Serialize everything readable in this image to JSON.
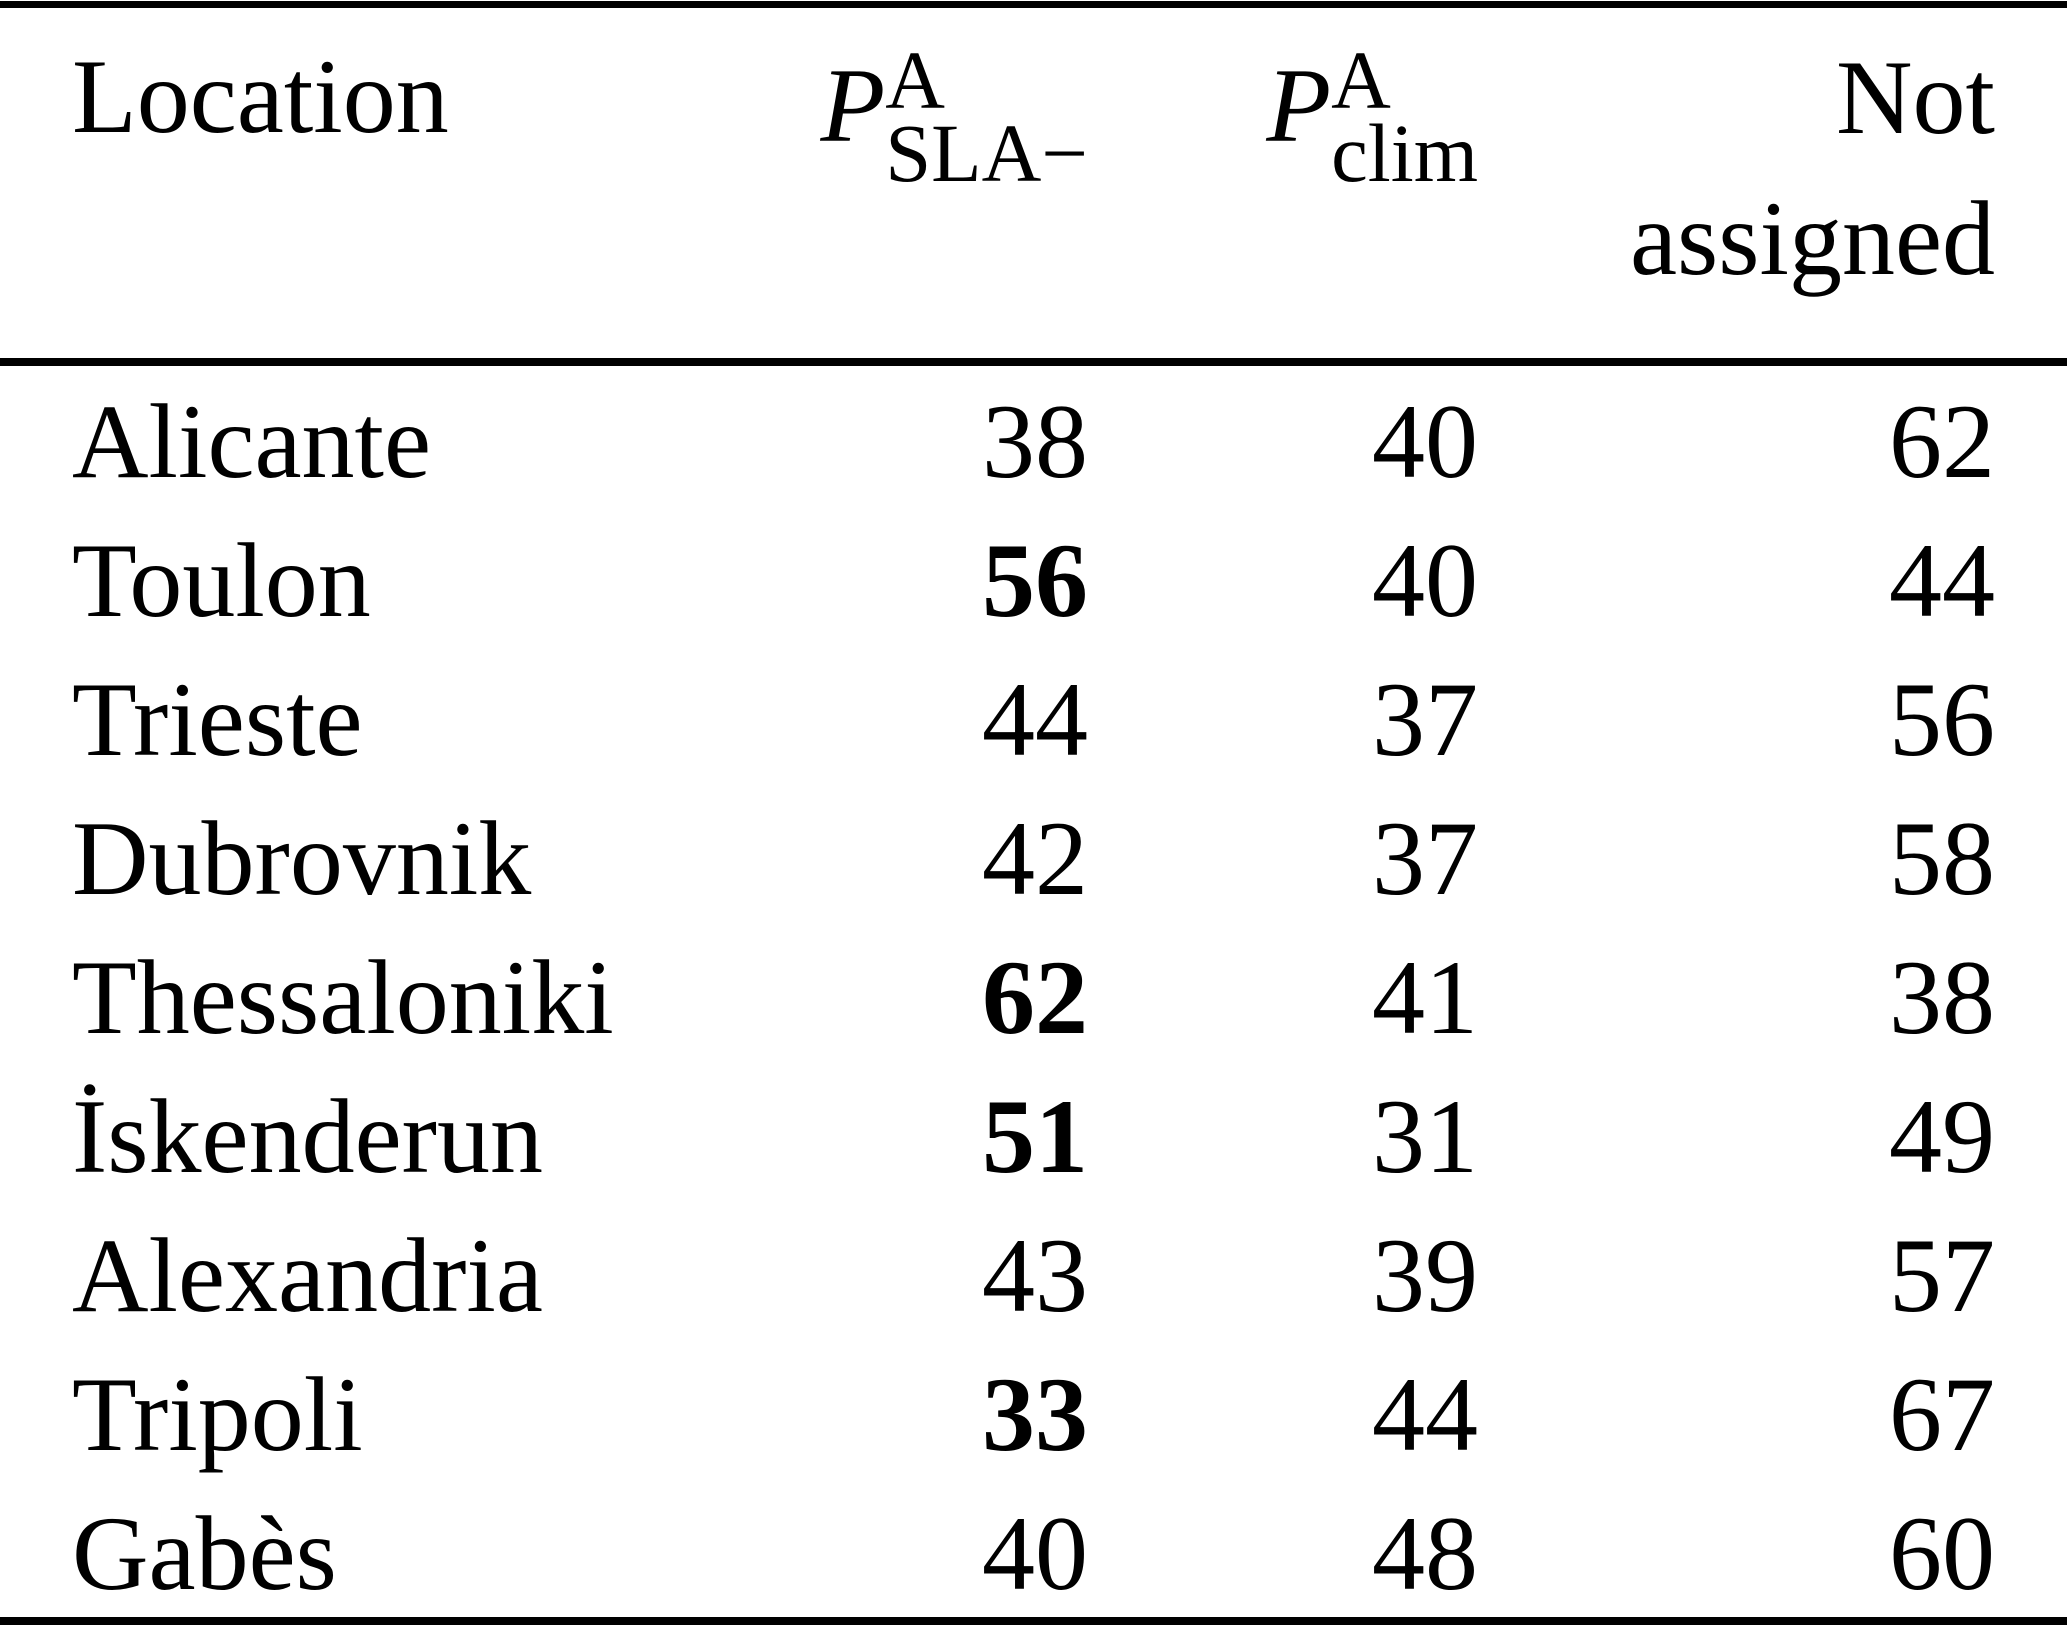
{
  "colors": {
    "background": "#ffffff",
    "text": "#000000",
    "rule": "#000000"
  },
  "table": {
    "header": {
      "location": "Location",
      "col_sla": {
        "base": "P",
        "sup": "A",
        "sub": "SLA−"
      },
      "col_clim": {
        "base": "P",
        "sup": "A",
        "sub": "clim"
      },
      "col_not_assigned": {
        "line1": "Not",
        "line2": "assigned"
      }
    },
    "rows": [
      {
        "location": "Alicante",
        "p_sla": "38",
        "p_sla_bold": false,
        "p_clim": "40",
        "not_assigned": "62"
      },
      {
        "location": "Toulon",
        "p_sla": "56",
        "p_sla_bold": true,
        "p_clim": "40",
        "not_assigned": "44"
      },
      {
        "location": "Trieste",
        "p_sla": "44",
        "p_sla_bold": false,
        "p_clim": "37",
        "not_assigned": "56"
      },
      {
        "location": "Dubrovnik",
        "p_sla": "42",
        "p_sla_bold": false,
        "p_clim": "37",
        "not_assigned": "58"
      },
      {
        "location": "Thessaloniki",
        "p_sla": "62",
        "p_sla_bold": true,
        "p_clim": "41",
        "not_assigned": "38"
      },
      {
        "location": "İskenderun",
        "p_sla": "51",
        "p_sla_bold": true,
        "p_clim": "31",
        "not_assigned": "49"
      },
      {
        "location": "Alexandria",
        "p_sla": "43",
        "p_sla_bold": false,
        "p_clim": "39",
        "not_assigned": "57"
      },
      {
        "location": "Tripoli",
        "p_sla": "33",
        "p_sla_bold": true,
        "p_clim": "44",
        "not_assigned": "67"
      },
      {
        "location": "Gabès",
        "p_sla": "40",
        "p_sla_bold": false,
        "p_clim": "48",
        "not_assigned": "60"
      }
    ]
  }
}
